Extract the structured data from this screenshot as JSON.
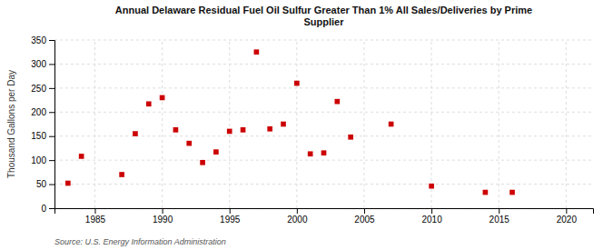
{
  "chart_data": {
    "type": "scatter",
    "title": "Annual Delaware Residual Fuel Oil Sulfur Greater Than 1% All Sales/Deliveries by Prime\nSupplier",
    "ylabel": "Thousand Gallons per Day",
    "annotations": [
      "Source: U.S. Energy Information Administration"
    ],
    "x": [
      1983,
      1984,
      1987,
      1988,
      1989,
      1990,
      1991,
      1992,
      1993,
      1994,
      1995,
      1996,
      1997,
      1998,
      1999,
      2000,
      2001,
      2002,
      2003,
      2004,
      2007,
      2010,
      2014,
      2016
    ],
    "values": [
      52,
      108,
      70,
      155,
      217,
      230,
      163,
      135,
      95,
      117,
      160,
      163,
      325,
      165,
      175,
      260,
      113,
      115,
      222,
      148,
      175,
      46,
      33,
      33
    ],
    "color": "#cc0000",
    "marker": "square",
    "xlim": [
      1982,
      2022
    ],
    "ylim": [
      0,
      350
    ],
    "xticks": [
      1985,
      1990,
      1995,
      2000,
      2005,
      2010,
      2015,
      2020
    ],
    "yticks": [
      0,
      50,
      100,
      150,
      200,
      250,
      300,
      350
    ],
    "grid": true
  }
}
